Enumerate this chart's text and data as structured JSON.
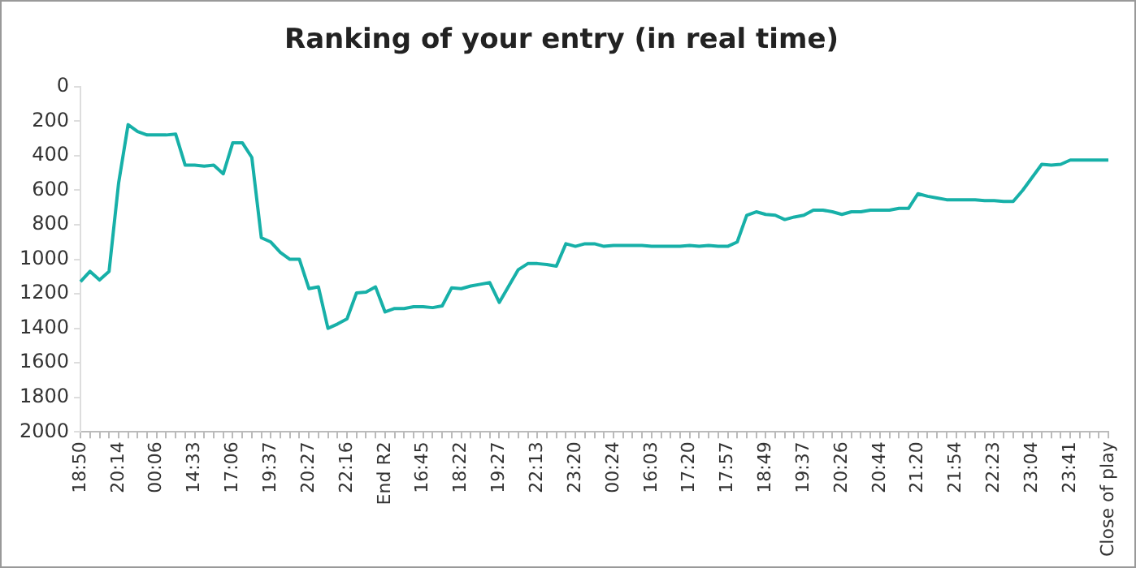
{
  "chart_data": {
    "type": "line",
    "title": "Ranking of your entry (in real time)",
    "categories": [
      "18:50",
      null,
      null,
      null,
      "20:14",
      null,
      null,
      null,
      "00:06",
      null,
      null,
      null,
      "14:33",
      null,
      null,
      null,
      "17:06",
      null,
      null,
      null,
      "19:37",
      null,
      null,
      null,
      "20:27",
      null,
      null,
      null,
      "22:16",
      null,
      null,
      null,
      "End R2",
      null,
      null,
      null,
      "16:45",
      null,
      null,
      null,
      "18:22",
      null,
      null,
      null,
      "19:27",
      null,
      null,
      null,
      "22:13",
      null,
      null,
      null,
      "23:20",
      null,
      null,
      null,
      "00:24",
      null,
      null,
      null,
      "16:03",
      null,
      null,
      null,
      "17:20",
      null,
      null,
      null,
      "17:57",
      null,
      null,
      null,
      "18:49",
      null,
      null,
      null,
      "19:37",
      null,
      null,
      null,
      "20:26",
      null,
      null,
      null,
      "20:44",
      null,
      null,
      null,
      "21:20",
      null,
      null,
      null,
      "21:54",
      null,
      null,
      null,
      "22:23",
      null,
      null,
      null,
      "23:04",
      null,
      null,
      null,
      "23:41",
      null,
      null,
      null,
      "Close of play"
    ],
    "series": [
      {
        "color": "#17b0a8",
        "values": [
          1130,
          1070,
          1120,
          1070,
          560,
          220,
          260,
          280,
          280,
          280,
          275,
          455,
          455,
          460,
          455,
          505,
          325,
          325,
          410,
          875,
          900,
          960,
          1000,
          1000,
          1170,
          1160,
          1400,
          1375,
          1345,
          1195,
          1190,
          1160,
          1305,
          1285,
          1285,
          1275,
          1275,
          1280,
          1270,
          1165,
          1170,
          1155,
          1145,
          1135,
          1250,
          1155,
          1060,
          1025,
          1025,
          1030,
          1040,
          910,
          925,
          910,
          910,
          925,
          920,
          920,
          920,
          920,
          925,
          925,
          925,
          925,
          920,
          925,
          920,
          925,
          925,
          900,
          745,
          725,
          740,
          745,
          770,
          755,
          745,
          715,
          715,
          725,
          740,
          725,
          725,
          715,
          715,
          715,
          705,
          705,
          620,
          635,
          645,
          655,
          655,
          655,
          655,
          660,
          660,
          665,
          665,
          600,
          525,
          450,
          455,
          450,
          425,
          425,
          425,
          425,
          425
        ]
      }
    ],
    "ylim": [
      2000,
      0
    ],
    "yticks": [
      0,
      200,
      400,
      600,
      800,
      1000,
      1200,
      1400,
      1600,
      1800,
      2000
    ],
    "grid": false,
    "legend": false,
    "marker": "none",
    "line_style": "solid"
  }
}
